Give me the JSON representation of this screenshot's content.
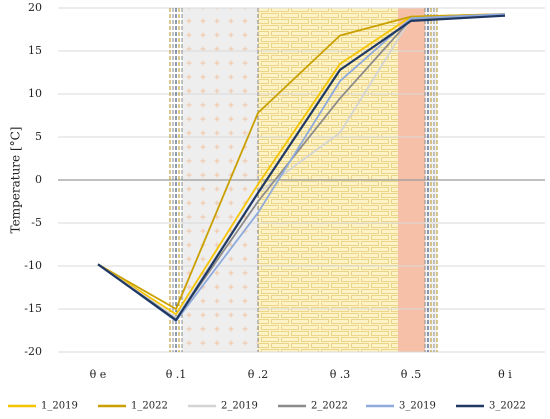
{
  "chart_data": {
    "type": "line",
    "title": "",
    "xlabel": "",
    "ylabel": "Temperature [°C]",
    "ylim": [
      -20,
      20
    ],
    "y_ticks": [
      -20,
      -15,
      -10,
      -5,
      0,
      5,
      10,
      15,
      20
    ],
    "grid": "horizontal",
    "legend": "bottom",
    "categories": [
      "θ e",
      "θ .1",
      "θ .2",
      "θ .3",
      "θ .5",
      "θ i"
    ],
    "x_positions": [
      0,
      1,
      2,
      3,
      3.6,
      4.0
    ],
    "series": [
      {
        "name": "1_2019",
        "color": "#f5c400",
        "values": [
          -9.8,
          -15.6,
          -0.5,
          13.5,
          19.0,
          19.3
        ]
      },
      {
        "name": "1_2022",
        "color": "#c9a000",
        "values": [
          -9.8,
          -15.0,
          7.8,
          16.8,
          19.0,
          19.3
        ]
      },
      {
        "name": "2_2019",
        "color": "#d4d4d4",
        "values": [
          -9.8,
          -16.0,
          -1.5,
          5.5,
          18.8,
          19.2
        ]
      },
      {
        "name": "2_2022",
        "color": "#8c8c8c",
        "values": [
          -9.8,
          -16.2,
          -2.5,
          9.5,
          18.7,
          19.1
        ]
      },
      {
        "name": "3_2019",
        "color": "#8faadc",
        "values": [
          -9.8,
          -16.4,
          -3.8,
          11.5,
          18.8,
          19.3
        ]
      },
      {
        "name": "3_2022",
        "color": "#1f3864",
        "values": [
          -9.8,
          -16.3,
          -1.5,
          12.8,
          18.5,
          19.1
        ]
      }
    ]
  }
}
